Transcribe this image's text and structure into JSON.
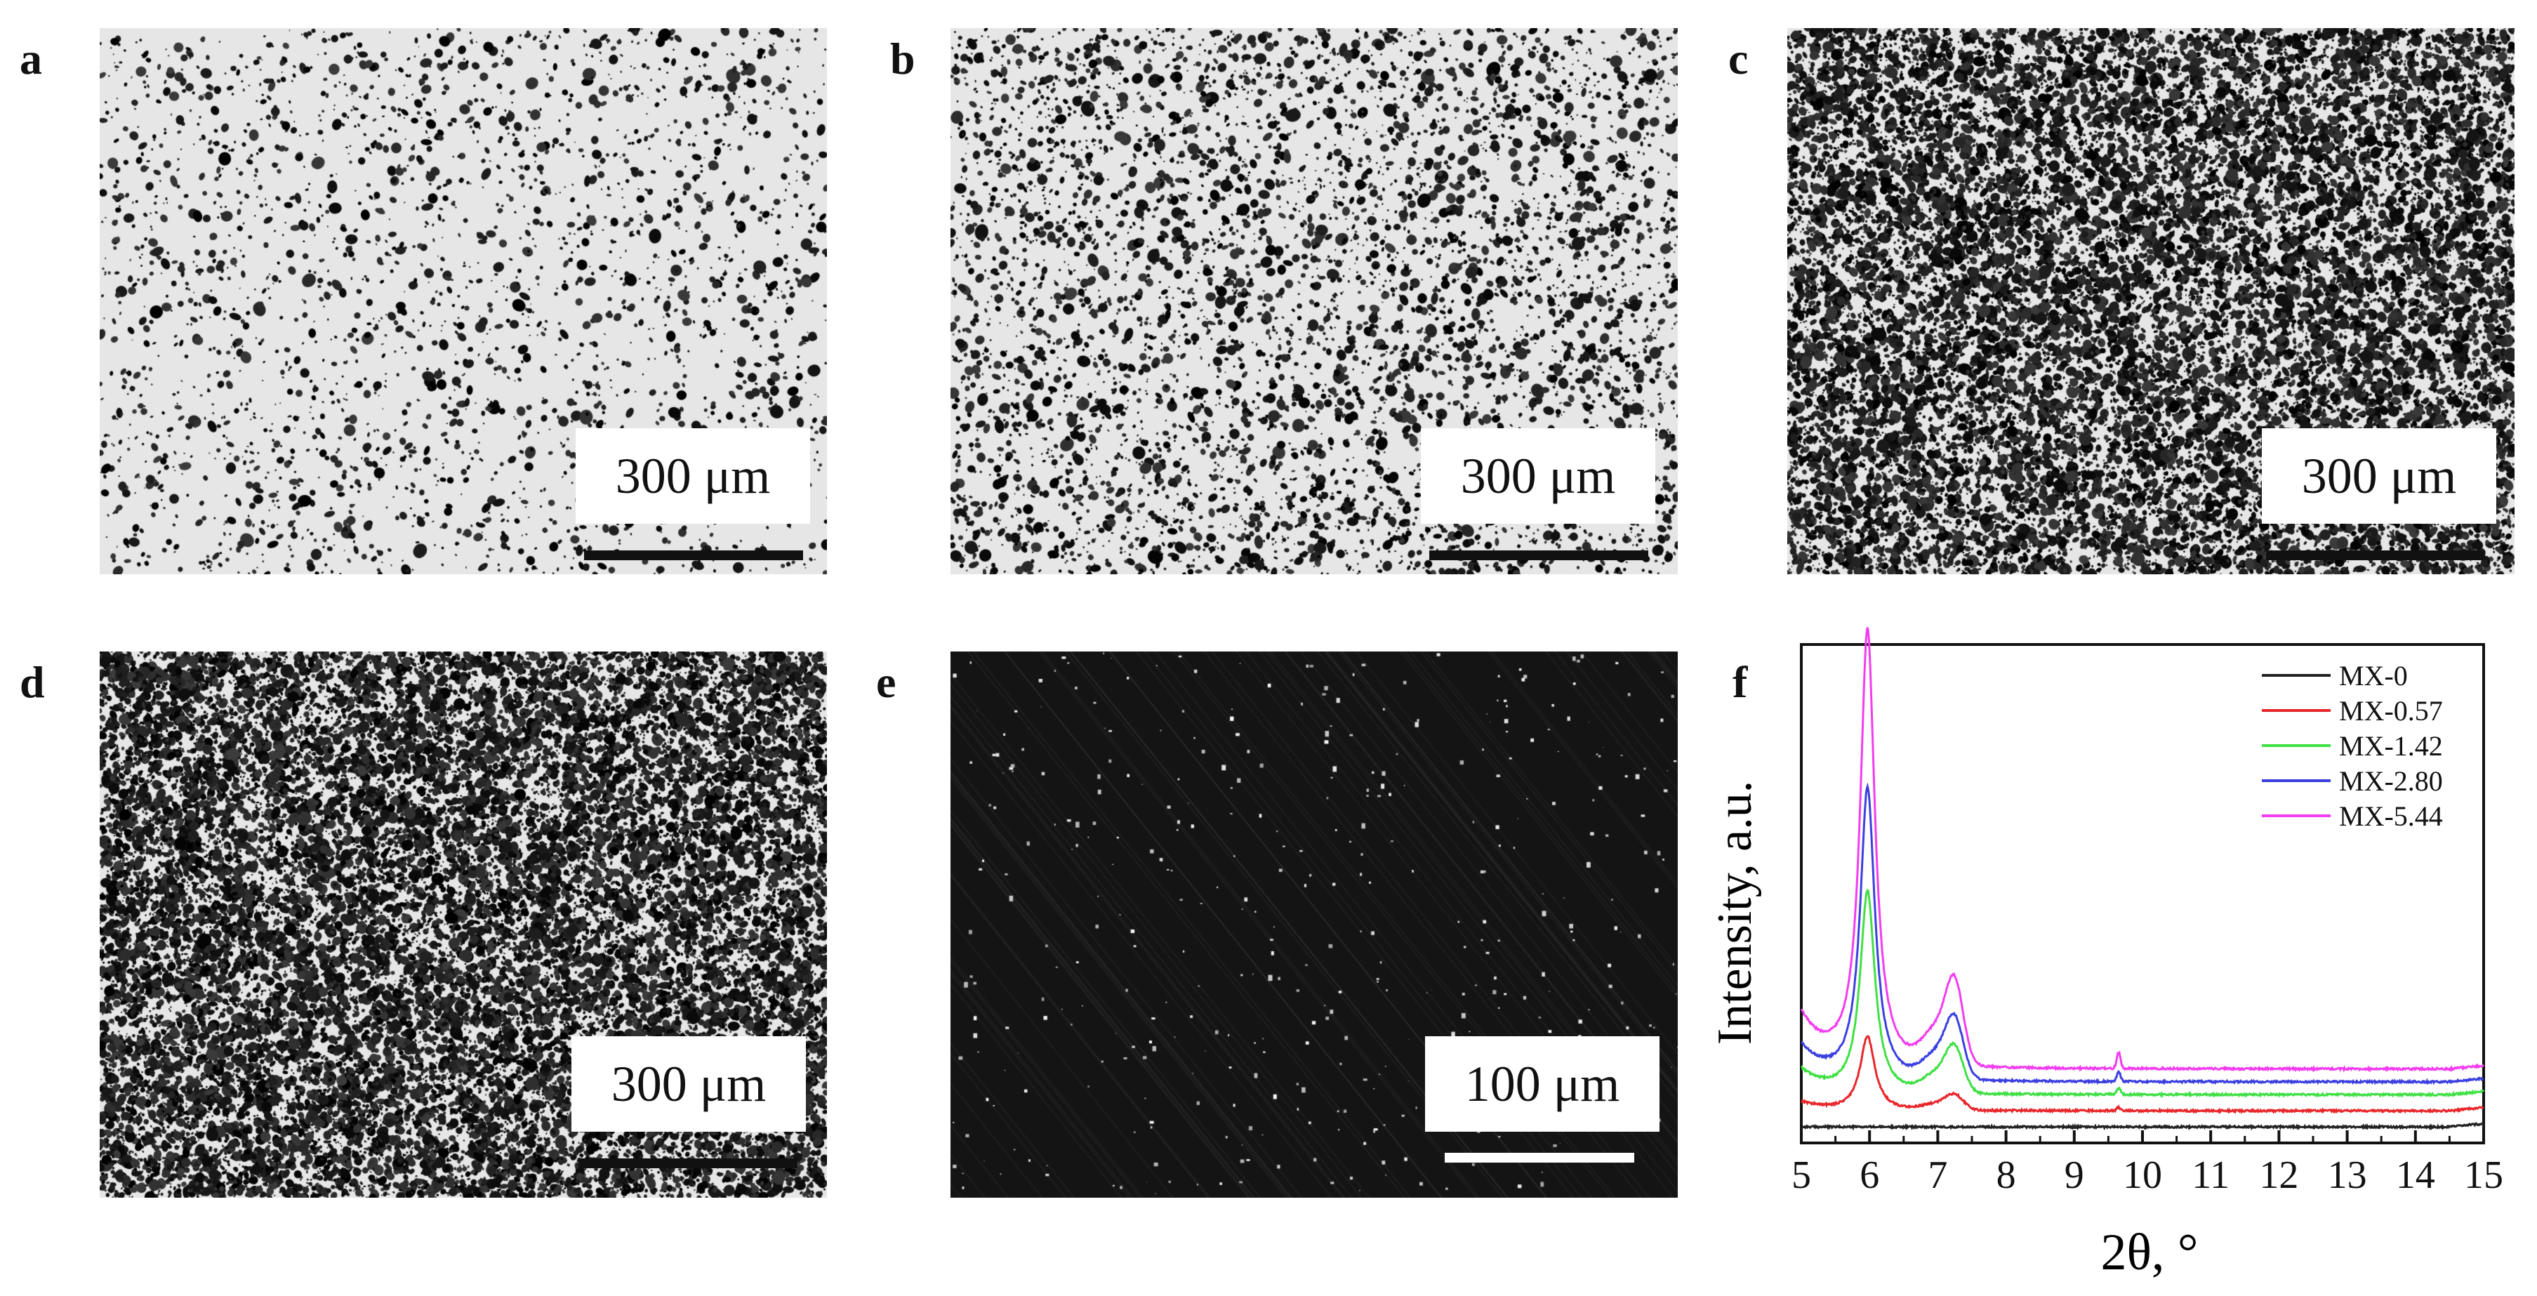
{
  "panels": [
    {
      "letter": "a",
      "scale_label": "300 μm",
      "style": "light",
      "density": 0.04
    },
    {
      "letter": "b",
      "scale_label": "300 μm",
      "style": "light",
      "density": 0.08
    },
    {
      "letter": "c",
      "scale_label": "300 μm",
      "style": "light",
      "density": 0.28
    },
    {
      "letter": "d",
      "scale_label": "300 μm",
      "style": "light",
      "density": 0.34
    },
    {
      "letter": "e",
      "scale_label": "100 μm",
      "style": "dark",
      "density": 0.02
    }
  ],
  "xrd_panel": {
    "letter": "f"
  },
  "colors": {
    "scale_bar_light": "#111111",
    "scale_bar_dark": "#ffffff"
  },
  "chart_data": {
    "type": "line",
    "xlabel": "2θ, °",
    "ylabel": "Intensity, a.u.",
    "xlim": [
      5,
      15
    ],
    "xticks": [
      "5",
      "6",
      "7",
      "8",
      "9",
      "10",
      "11",
      "12",
      "13",
      "14",
      "15"
    ],
    "legend_position": "top-right",
    "grid": false,
    "series": [
      {
        "name": "MX-0",
        "color": "#222222",
        "baseline": 0.05,
        "peak1": 0.0,
        "peak2": 0.0,
        "tail": 0.0
      },
      {
        "name": "MX-0.57",
        "color": "#e8262a",
        "baseline": 0.1,
        "peak1": 0.23,
        "peak2": 0.04,
        "tail": 0.01
      },
      {
        "name": "MX-1.42",
        "color": "#3fe045",
        "baseline": 0.15,
        "peak1": 0.63,
        "peak2": 0.12,
        "tail": 0.02
      },
      {
        "name": "MX-2.80",
        "color": "#3b3fe0",
        "baseline": 0.19,
        "peak1": 0.91,
        "peak2": 0.16,
        "tail": 0.03
      },
      {
        "name": "MX-5.44",
        "color": "#f23cf0",
        "baseline": 0.23,
        "peak1": 1.36,
        "peak2": 0.22,
        "tail": 0.05
      }
    ]
  }
}
